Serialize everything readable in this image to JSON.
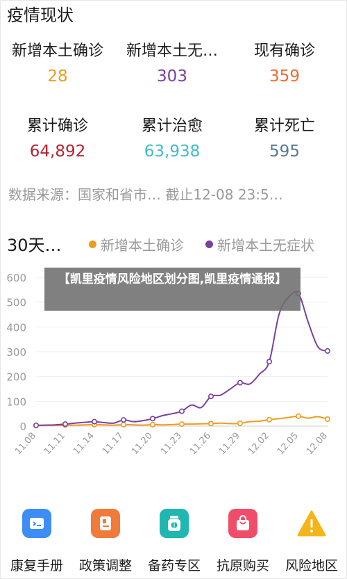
{
  "header": {
    "title": "疫情现状"
  },
  "stats": [
    {
      "label": "新增本土确诊",
      "value": "28",
      "color": "#f19b1d"
    },
    {
      "label": "新增本土无…",
      "value": "303",
      "color": "#7a3fa0"
    },
    {
      "label": "现有确诊",
      "value": "359",
      "color": "#ef6b2d"
    },
    {
      "label": "累计确诊",
      "value": "64,892",
      "color": "#b52230"
    },
    {
      "label": "累计治愈",
      "value": "63,938",
      "color": "#3fbcc4"
    },
    {
      "label": "累计死亡",
      "value": "595",
      "color": "#557896"
    }
  ],
  "source_text": "数据来源：国家和省市… 截止12-08 23:5…",
  "chart_header": {
    "title": "30天…"
  },
  "overlay": {
    "text": "【凯里疫情风险地区划分图,凯里疫情通报】"
  },
  "chart_data": {
    "type": "line",
    "x": [
      "11.08",
      "11.09",
      "11.10",
      "11.11",
      "11.12",
      "11.13",
      "11.14",
      "11.15",
      "11.16",
      "11.17",
      "11.18",
      "11.19",
      "11.20",
      "11.21",
      "11.22",
      "11.23",
      "11.24",
      "11.25",
      "11.26",
      "11.27",
      "11.28",
      "11.29",
      "11.30",
      "12.01",
      "12.02",
      "12.03",
      "12.04",
      "12.05",
      "12.06",
      "12.07",
      "12.08"
    ],
    "x_tick_labels": [
      "11.08",
      "11.11",
      "11.14",
      "11.17",
      "11.20",
      "11.23",
      "11.26",
      "11.29",
      "12.02",
      "12.05",
      "12.08"
    ],
    "series": [
      {
        "name": "新增本土确诊",
        "color": "#f19b1d",
        "values": [
          2,
          3,
          3,
          4,
          4,
          5,
          6,
          5,
          4,
          6,
          5,
          4,
          6,
          5,
          6,
          8,
          8,
          9,
          10,
          12,
          10,
          11,
          18,
          20,
          26,
          30,
          35,
          40,
          32,
          38,
          28
        ]
      },
      {
        "name": "新增本土无症状",
        "color": "#7a3fa0",
        "values": [
          3,
          4,
          5,
          8,
          12,
          15,
          18,
          14,
          12,
          25,
          18,
          22,
          30,
          42,
          50,
          60,
          85,
          75,
          120,
          125,
          150,
          175,
          170,
          210,
          260,
          450,
          520,
          535,
          420,
          320,
          303
        ]
      }
    ],
    "ylim": [
      0,
      600
    ],
    "yticks": [
      0,
      100,
      200,
      300,
      400,
      500,
      600
    ],
    "grid": true,
    "legend": "top"
  },
  "nav": [
    {
      "label": "康复手册",
      "icon": "rehab-manual-icon",
      "color": "#3d8df5"
    },
    {
      "label": "政策调整",
      "icon": "policy-icon",
      "color": "#f07a3a"
    },
    {
      "label": "备药专区",
      "icon": "medicine-icon",
      "color": "#1fb7b1"
    },
    {
      "label": "抗原购买",
      "icon": "shopping-bag-icon",
      "color": "#ef4d6a"
    },
    {
      "label": "风险地区",
      "icon": "warning-icon",
      "color": "#f5b418"
    }
  ]
}
